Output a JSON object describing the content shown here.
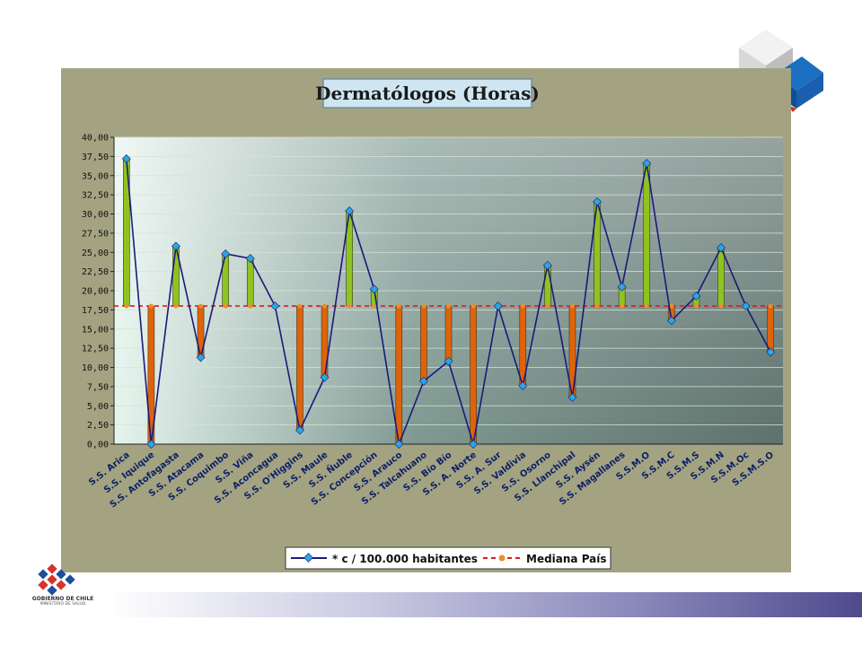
{
  "footer": {
    "org_name": "GOBIERNO DE CHILE",
    "org_sub": "MINISTERIO DE SALUD"
  },
  "chart_data": {
    "type": "bar+line",
    "title": "Dermatólogos (Horas)",
    "baseline": 18.0,
    "ylim": [
      0,
      40
    ],
    "yticks": [
      "0,00",
      "2,50",
      "5,00",
      "7,50",
      "10,00",
      "12,50",
      "15,00",
      "17,50",
      "20,00",
      "22,50",
      "25,00",
      "27,50",
      "30,00",
      "32,50",
      "35,00",
      "37,50",
      "40,00"
    ],
    "categories": [
      "S.S. Arica",
      "S.S. Iquique",
      "S.S. Antofagasta",
      "S.S. Atacama",
      "S.S. Coquimbo",
      "S.S. Viña",
      "S.S. Aconcagua",
      "S.S. O'Higgins",
      "S.S. Maule",
      "S.S. Ñuble",
      "S.S. Concepción",
      "S.S. Arauco",
      "S.S. Talcahuano",
      "S.S. Bío Bío",
      "S.S. A. Norte",
      "S.S. A. Sur",
      "S.S. Valdivia",
      "S.S. Osorno",
      "S.S. Llanchipal",
      "S.S. Aysén",
      "S.S. Magallanes",
      "S.S.M.O",
      "S.S.M.C",
      "S.S.M.S",
      "S.S.M.N",
      "S.S.M.Oc",
      "S.S.M.S.O"
    ],
    "series": [
      {
        "name": "* c / 100.000 habitantes",
        "values": [
          37.2,
          0,
          25.8,
          11.3,
          24.8,
          24.2,
          18.0,
          1.8,
          8.7,
          30.4,
          20.2,
          0,
          8.2,
          10.8,
          0,
          18.0,
          7.6,
          23.3,
          6.1,
          31.6,
          20.5,
          36.6,
          16.1,
          19.3,
          25.6,
          18.0,
          12.0
        ]
      },
      {
        "name": "Mediana País",
        "values": [
          18.0,
          18.0,
          18.0,
          18.0,
          18.0,
          18.0,
          18.0,
          18.0,
          18.0,
          18.0,
          18.0,
          18.0,
          18.0,
          18.0,
          18.0,
          18.0,
          18.0,
          18.0,
          18.0,
          18.0,
          18.0,
          18.0,
          18.0,
          18.0,
          18.0,
          18.0,
          18.0
        ]
      }
    ],
    "colors": {
      "above": "#8fc31f",
      "below": "#e0620a",
      "line": "#1a1a7a",
      "marker": "#29a8e0",
      "median": "#d42020",
      "median_marker": "#e89030",
      "outer_bg": "#a3a382",
      "title_bg": "#cfe6f2"
    },
    "legend_position": "bottom",
    "grid": true
  }
}
